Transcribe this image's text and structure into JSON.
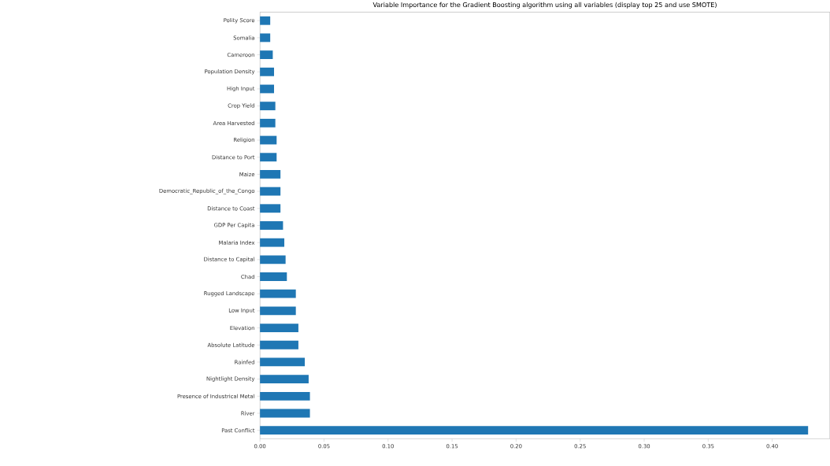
{
  "chart_data": {
    "type": "bar",
    "orientation": "horizontal",
    "title": "Variable Importance for the Gradient Boosting algorithm using all variables (display top 25 and use SMOTE)",
    "categories": [
      "Polity Score",
      "Somalia",
      "Cameroon",
      "Population Density",
      "High Input",
      "Crop Yield",
      "Area Harvested",
      "Religion",
      "Distance to Port",
      "Maize",
      "Democratic_Republic_of_the_Congo",
      "Distance to Coast",
      "GDP Per Capita",
      "Malaria Index",
      "Distance to Capital",
      "Chad",
      "Rugged Landscape",
      "Low Input",
      "Elevation",
      "Absolute Latitude",
      "Rainfed",
      "Nightlight Density",
      "Presence of Industrical Metal",
      "River",
      "Past Conflict"
    ],
    "values": [
      0.008,
      0.008,
      0.01,
      0.011,
      0.011,
      0.012,
      0.012,
      0.013,
      0.013,
      0.016,
      0.016,
      0.016,
      0.018,
      0.019,
      0.02,
      0.021,
      0.028,
      0.028,
      0.03,
      0.03,
      0.035,
      0.038,
      0.039,
      0.039,
      0.428
    ],
    "color": "#1f77b4",
    "xlim": [
      0,
      0.445
    ],
    "xticks": [
      {
        "value": 0,
        "label": "0.00"
      },
      {
        "value": 0.05,
        "label": "0.05"
      },
      {
        "value": 0.1,
        "label": "0.10"
      },
      {
        "value": 0.15,
        "label": "0.15"
      },
      {
        "value": 0.2,
        "label": "0.20"
      },
      {
        "value": 0.25,
        "label": "0.25"
      },
      {
        "value": 0.3,
        "label": "0.30"
      },
      {
        "value": 0.35,
        "label": "0.35"
      },
      {
        "value": 0.4,
        "label": "0.40"
      }
    ]
  }
}
